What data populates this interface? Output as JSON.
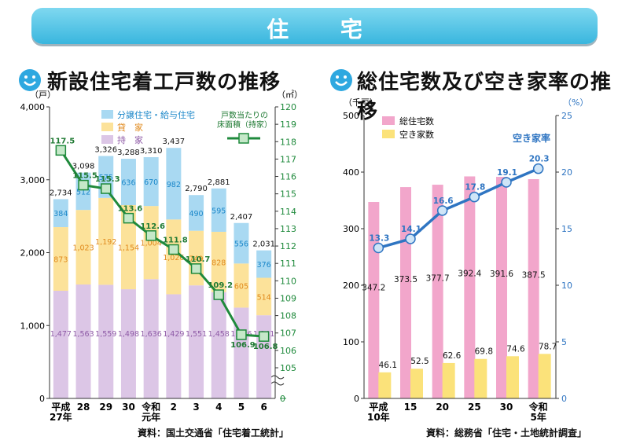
{
  "banner": {
    "title": "住 宅"
  },
  "left": {
    "heading": "新設住宅着工戸数の推移",
    "source": "資料：国土交通省「住宅着工統計」"
  },
  "right": {
    "heading": "総住宅数及び空き家率の推移",
    "source": "資料：総務省「住宅・土地統計調査」"
  },
  "colors": {
    "bunjo": "#a9d9f2",
    "chintai": "#fce29a",
    "mochiie": "#dcc6e6",
    "line_left": "#1f8a3c",
    "marker_left": "#c5e8c9",
    "sotaku": "#f2a6cb",
    "akiya": "#fbe27a",
    "line_right": "#2f75c2"
  },
  "chart_data": [
    {
      "type": "bar",
      "stacked": true,
      "title": "新設住宅着工戸数の推移",
      "ylabel": "（戸）",
      "y2label": "（㎡）",
      "ylim": [
        0,
        4000
      ],
      "y2lim": [
        104,
        120
      ],
      "yticks": [
        "0",
        "1,000",
        "2,000",
        "3,000",
        "4,000"
      ],
      "y2ticks": [
        "105",
        "106",
        "107",
        "108",
        "109",
        "110",
        "111",
        "112",
        "113",
        "114",
        "115",
        "116",
        "117",
        "118",
        "119",
        "120"
      ],
      "categories": [
        [
          "平成",
          "27年"
        ],
        [
          "28"
        ],
        [
          "29"
        ],
        [
          "30"
        ],
        [
          "令和",
          "元年"
        ],
        [
          "2"
        ],
        [
          "3"
        ],
        [
          "4"
        ],
        [
          "5"
        ],
        [
          "6"
        ]
      ],
      "series": [
        {
          "name": "持　家",
          "key": "mochiie",
          "values": [
            1477,
            1563,
            1559,
            1498,
            1636,
            1429,
            1551,
            1458,
            1246,
            1141
          ],
          "labels": [
            "1,477",
            "1,563",
            "1,559",
            "1,498",
            "1,636",
            "1,429",
            "1,551",
            "1,458",
            "1,246",
            "1,141"
          ]
        },
        {
          "name": "貸　家",
          "key": "chintai",
          "values": [
            873,
            1023,
            1192,
            1154,
            1004,
            1026,
            749,
            828,
            605,
            514
          ],
          "labels": [
            "873",
            "1,023",
            "1,192",
            "1,154",
            "1,004",
            "1,026",
            "749",
            "828",
            "605",
            "514"
          ]
        },
        {
          "name": "分譲住宅・給与住宅",
          "key": "bunjo",
          "values": [
            384,
            512,
            575,
            636,
            670,
            982,
            490,
            595,
            556,
            376
          ],
          "labels": [
            "384",
            "512",
            "575",
            "636",
            "670",
            "982",
            "490",
            "595",
            "556",
            "376"
          ]
        }
      ],
      "totals": [
        "2,734",
        "3,098",
        "3,326",
        "3,288",
        "3,310",
        "3,437",
        "2,790",
        "2,881",
        "2,407",
        "2,031"
      ],
      "line": {
        "name": "戸数当たりの床面積（持家）",
        "name_lines": [
          "戸数当たりの",
          "床面積（持家）"
        ],
        "values": [
          117.5,
          115.5,
          115.3,
          113.6,
          112.6,
          111.8,
          110.7,
          109.2,
          106.9,
          106.8
        ],
        "labels": [
          "117.5",
          "115.5",
          "115.3",
          "113.6",
          "112.6",
          "111.8",
          "110.7",
          "109.2",
          "106.9",
          "106.8"
        ]
      }
    },
    {
      "type": "bar",
      "title": "総住宅数及び空き家率の推移",
      "ylabel": "（千戸）",
      "y2label": "（%）",
      "ylim": [
        0,
        500
      ],
      "y2lim": [
        0,
        25
      ],
      "yticks": [
        "0",
        "100",
        "200",
        "300",
        "400",
        "500"
      ],
      "y2ticks": [
        "0",
        "5",
        "10",
        "15",
        "20",
        "25"
      ],
      "categories": [
        [
          "平成",
          "10年"
        ],
        [
          "15"
        ],
        [
          "20"
        ],
        [
          "25"
        ],
        [
          "30"
        ],
        [
          "令和",
          "5年"
        ]
      ],
      "series": [
        {
          "name": "総住宅数",
          "key": "sotaku",
          "values": [
            347.2,
            373.5,
            377.7,
            392.4,
            391.6,
            387.5
          ],
          "labels": [
            "347.2",
            "373.5",
            "377.7",
            "392.4",
            "391.6",
            "387.5"
          ]
        },
        {
          "name": "空き家数",
          "key": "akiya",
          "values": [
            46.1,
            52.5,
            62.6,
            69.8,
            74.6,
            78.7
          ],
          "labels": [
            "46.1",
            "52.5",
            "62.6",
            "69.8",
            "74.6",
            "78.7"
          ]
        }
      ],
      "line": {
        "name": "空き家率",
        "values": [
          13.3,
          14.1,
          16.6,
          17.8,
          19.1,
          20.3
        ],
        "labels": [
          "13.3",
          "14.1",
          "16.6",
          "17.8",
          "19.1",
          "20.3"
        ]
      }
    }
  ]
}
